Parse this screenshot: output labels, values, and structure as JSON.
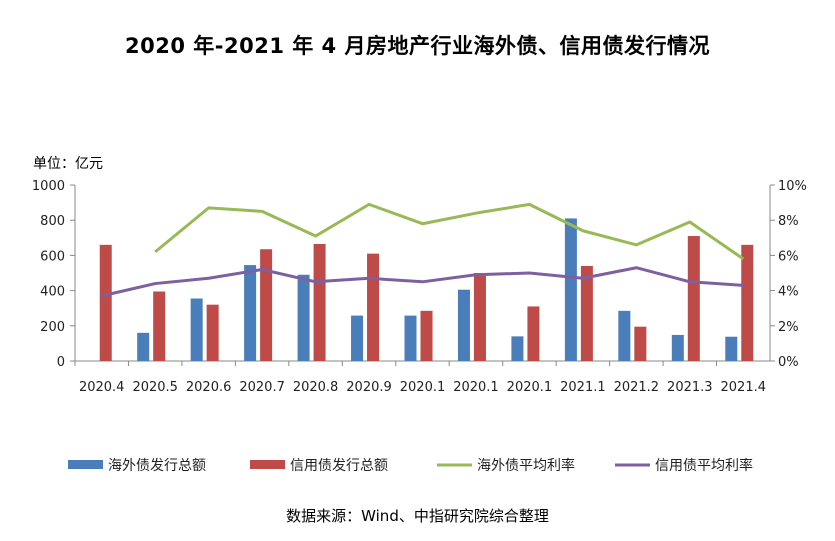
{
  "chart_data": {
    "type": "bar",
    "title": "2020 年-2021 年 4 月房地产行业海外债、信用债发行情况",
    "unit_label": "单位：亿元",
    "source": "数据来源：Wind、中指研究院综合整理",
    "categories": [
      "2020.4",
      "2020.5",
      "2020.6",
      "2020.7",
      "2020.8",
      "2020.9",
      "2020.1",
      "2020.1",
      "2020.1",
      "2021.1",
      "2021.2",
      "2021.3",
      "2021.4"
    ],
    "left_axis": {
      "ylim": [
        0,
        1000
      ],
      "ticks": [
        "0",
        "200",
        "400",
        "600",
        "800",
        "1000"
      ]
    },
    "right_axis": {
      "ylim": [
        0,
        10
      ],
      "ticks": [
        "0%",
        "2%",
        "4%",
        "6%",
        "8%",
        "10%"
      ]
    },
    "grid": false,
    "legend_position": "bottom",
    "series": [
      {
        "name": "海外债发行总额",
        "type": "bar",
        "axis": "left",
        "color": "#4a7ebb",
        "values": [
          null,
          160,
          355,
          545,
          490,
          258,
          258,
          405,
          140,
          810,
          285,
          148,
          138
        ]
      },
      {
        "name": "信用债发行总额",
        "type": "bar",
        "axis": "left",
        "color": "#be4b48",
        "values": [
          660,
          395,
          320,
          635,
          665,
          610,
          285,
          500,
          310,
          540,
          195,
          710,
          660
        ]
      },
      {
        "name": "海外债平均利率",
        "type": "line",
        "axis": "right",
        "color": "#98b954",
        "values": [
          null,
          6.2,
          8.7,
          8.5,
          7.1,
          8.9,
          7.8,
          8.4,
          8.9,
          7.4,
          6.6,
          7.9,
          5.8
        ]
      },
      {
        "name": "信用债平均利率",
        "type": "line",
        "axis": "right",
        "color": "#7d60a0",
        "values": [
          3.7,
          4.4,
          4.7,
          5.2,
          4.5,
          4.7,
          4.5,
          4.9,
          5.0,
          4.7,
          5.3,
          4.5,
          4.3
        ]
      }
    ]
  }
}
